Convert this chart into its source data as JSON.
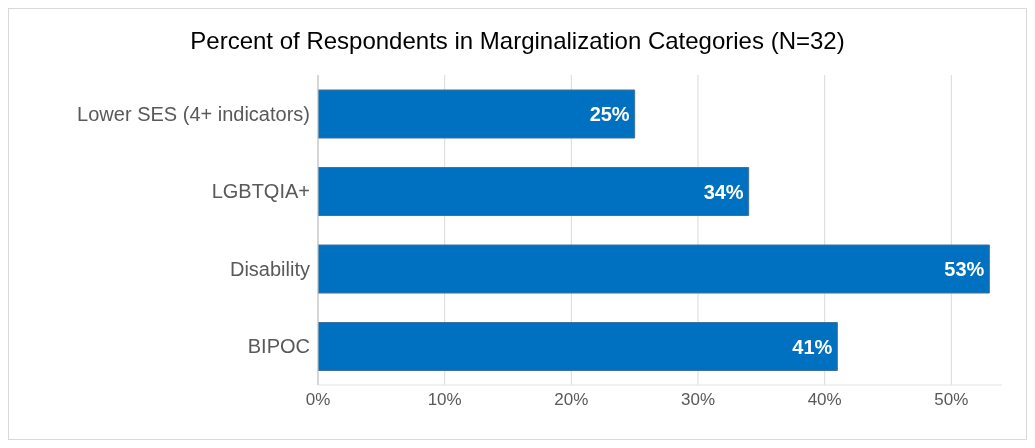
{
  "chart_data": {
    "type": "bar",
    "orientation": "horizontal",
    "title": "Percent of Respondents in Marginalization Categories (N=32)",
    "categories": [
      "Lower SES (4+ indicators)",
      "LGBTQIA+",
      "Disability",
      "BIPOC"
    ],
    "values": [
      25,
      34,
      53,
      41
    ],
    "value_labels": [
      "25%",
      "34%",
      "53%",
      "41%"
    ],
    "color": "#0070c0",
    "xlim": [
      0,
      54
    ],
    "xticks": [
      {
        "value": 0,
        "label": "0%"
      },
      {
        "value": 10,
        "label": "10%"
      },
      {
        "value": 20,
        "label": "20%"
      },
      {
        "value": 30,
        "label": "30%"
      },
      {
        "value": 40,
        "label": "40%"
      },
      {
        "value": 50,
        "label": "50%"
      }
    ],
    "grid": "x",
    "legend": false
  }
}
